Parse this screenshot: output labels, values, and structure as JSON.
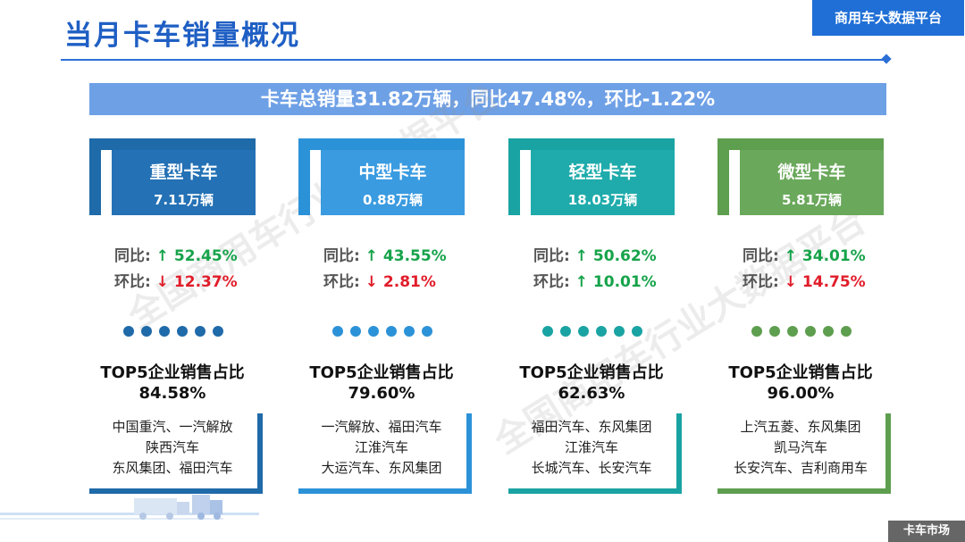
{
  "header": {
    "title": "当月卡车销量概况",
    "brand": "商用车大数据平台"
  },
  "summary": "卡车总销量31.82万辆，同比47.48%，环比-1.22%",
  "watermark": "全国商用车行业大数据平台",
  "categories": [
    {
      "name": "重型卡车",
      "sales": "7.11万辆",
      "color": "#1f6aa9",
      "panel": "#2471b5",
      "yoy_label": "同比:",
      "yoy_arrow": "↑",
      "yoy": "52.45%",
      "mom_label": "环比:",
      "mom_arrow": "↓",
      "mom": "12.37%",
      "top5_title": "TOP5企业销售占比",
      "top5_share": "84.58%",
      "top5_lines": [
        "中国重汽、一汽解放",
        "陕西汽车",
        "东风集团、福田汽车"
      ]
    },
    {
      "name": "中型卡车",
      "sales": "0.88万辆",
      "color": "#2c92d8",
      "panel": "#3a9be0",
      "yoy_label": "同比:",
      "yoy_arrow": "↑",
      "yoy": "43.55%",
      "mom_label": "环比:",
      "mom_arrow": "↓",
      "mom": "2.81%",
      "top5_title": "TOP5企业销售占比",
      "top5_share": "79.60%",
      "top5_lines": [
        "一汽解放、福田汽车",
        "江淮汽车",
        "大运汽车、东风集团"
      ]
    },
    {
      "name": "轻型卡车",
      "sales": "18.03万辆",
      "color": "#1aa3a3",
      "panel": "#1fabab",
      "yoy_label": "同比:",
      "yoy_arrow": "↑",
      "yoy": "50.62%",
      "mom_label": "环比:",
      "mom_arrow": "↑",
      "mom": "10.01%",
      "top5_title": "TOP5企业销售占比",
      "top5_share": "62.63%",
      "top5_lines": [
        "福田汽车、东风集团",
        "江淮汽车",
        "长城汽车、长安汽车"
      ]
    },
    {
      "name": "微型卡车",
      "sales": "5.81万辆",
      "color": "#5e9e4f",
      "panel": "#6aa85b",
      "yoy_label": "同比:",
      "yoy_arrow": "↑",
      "yoy": "34.01%",
      "mom_label": "环比:",
      "mom_arrow": "↓",
      "mom": "14.75%",
      "top5_title": "TOP5企业销售占比",
      "top5_share": "96.00%",
      "top5_lines": [
        "上汽五菱、东风集团",
        "凯马汽车",
        "长安汽车、吉利商用车"
      ]
    }
  ],
  "footer": "卡车市场"
}
